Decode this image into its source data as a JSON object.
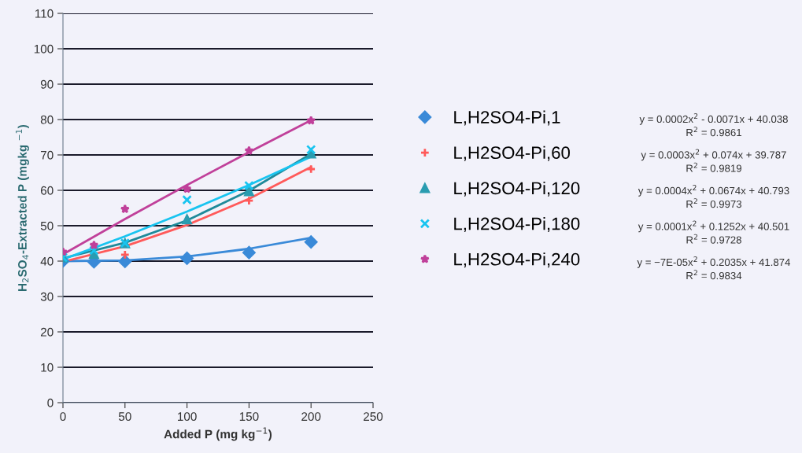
{
  "chart_data": {
    "type": "scatter",
    "xlabel": "Added P (mg kg$^{−1}$)",
    "ylabel": "H$_{2}$SO$_{4}$-Extracted P (mgkg $^{−1}$)",
    "x": [
      0,
      25,
      50,
      100,
      150,
      200
    ],
    "series": [
      {
        "name": "L,H2SO4-Pi,1",
        "color": "#3a8ad8",
        "marker": "diamond",
        "values": [
          40,
          39.8,
          39.9,
          40.8,
          42.4,
          45.4
        ]
      },
      {
        "name": "L,H2SO4-Pi,60",
        "color": "#ff5a5a",
        "marker": "cross",
        "values": [
          null,
          null,
          41.8,
          null,
          57.1,
          66
        ]
      },
      {
        "name": "L,H2SO4-Pi,120",
        "color": "#2a9cb0",
        "marker": "triangle",
        "values": [
          41,
          42,
          45,
          51.8,
          59.7,
          70.4
        ]
      },
      {
        "name": "L,H2SO4-Pi,180",
        "color": "#18c4f0",
        "marker": "x",
        "values": [
          41,
          43,
          45.1,
          57.3,
          61.3,
          71.5
        ]
      },
      {
        "name": "L,H2SO4-Pi,240",
        "color": "#c0409a",
        "marker": "star",
        "values": [
          42.6,
          44.5,
          54.7,
          60.4,
          71.2,
          79.7
        ]
      },
      {
        "type": "line",
        "color": "#3a8ad8",
        "x": [
          0,
          50,
          100,
          150,
          200
        ],
        "values": [
          40.0,
          40.2,
          41.3,
          43.5,
          46.6
        ]
      },
      {
        "type": "line",
        "color": "#ff5a5a",
        "x": [
          0,
          50,
          100,
          150,
          200
        ],
        "values": [
          39.8,
          44.2,
          50.2,
          57.6,
          66.6
        ]
      },
      {
        "type": "line",
        "color": "#1f8a9a",
        "x": [
          0,
          50,
          100,
          150,
          200
        ],
        "values": [
          40.8,
          45.2,
          51.5,
          59.9,
          70.3
        ]
      },
      {
        "type": "line",
        "color": "#18c4f0",
        "x": [
          0,
          50,
          100,
          150,
          200
        ],
        "values": [
          40.5,
          47.0,
          54.0,
          61.5,
          69.5
        ]
      },
      {
        "type": "line",
        "color": "#c0409a",
        "x": [
          0,
          50,
          100,
          150,
          200
        ],
        "values": [
          41.9,
          51.9,
          61.5,
          70.8,
          79.8
        ]
      }
    ],
    "xlim": [
      0,
      250
    ],
    "xticks": [
      0,
      50,
      100,
      150,
      200,
      250
    ],
    "ylim": [
      0,
      110
    ],
    "yticks": [
      0,
      10,
      20,
      30,
      40,
      50,
      60,
      70,
      80,
      90,
      100,
      110
    ],
    "grid": "y",
    "legend": "right",
    "annotations": [
      "y = 0.0002x$^{2}$ - 0.0071x + 40.038\nR$^{2}$ = 0.9861",
      "y = 0.0003x$^{2}$ + 0.074x + 39.787\nR$^{2}$ = 0.9819",
      "y = 0.0004x$^{2}$ + 0.0674x + 40.793\nR$^{2}$ = 0.9973",
      "y = 0.0001x$^{2}$ + 0.1252x + 40.501\nR$^{2}$ = 0.9728",
      "y = −7E-05x$^{2}$ + 0.2035x + 41.874\nR$^{2}$ = 0.9834"
    ]
  }
}
